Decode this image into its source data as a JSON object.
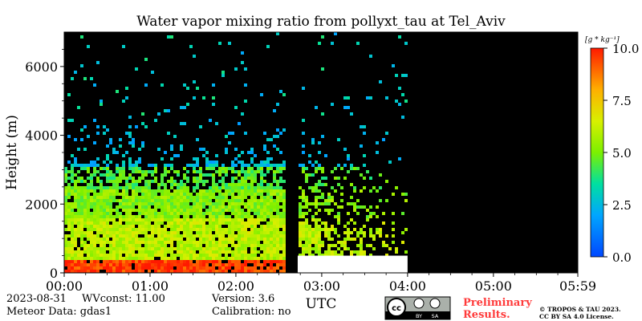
{
  "chart_data": {
    "type": "heatmap",
    "title": "Water vapor mixing ratio from pollyxt_tau at Tel_Aviv",
    "xlabel": "UTC",
    "ylabel": "Height (m)",
    "x_ticks": [
      "00:00",
      "01:00",
      "02:00",
      "03:00",
      "04:00",
      "05:00",
      "05:59"
    ],
    "x_range_hours": [
      0,
      5.983
    ],
    "y_ticks": [
      0,
      2000,
      4000,
      6000
    ],
    "ylim": [
      0,
      7000
    ],
    "colorbar": {
      "label": "[g * kg⁻¹]",
      "range": [
        0.0,
        10.0
      ],
      "ticks": [
        "0.0",
        "2.5",
        "5.0",
        "7.5",
        "10.0"
      ],
      "colormap": "jet"
    },
    "data_gaps_hours": [
      [
        2.55,
        2.72
      ],
      [
        4.0,
        5.983
      ]
    ],
    "profile_layers": [
      {
        "top_m": 450,
        "value_g_kg": 9.5
      },
      {
        "top_m": 1600,
        "value_g_kg": 6.0
      },
      {
        "top_m": 2500,
        "value_g_kg": 5.2
      },
      {
        "top_m": 3100,
        "value_g_kg": 4.5
      },
      {
        "top_m": 4500,
        "value_g_kg": 2.5
      }
    ]
  },
  "footer": {
    "date": "2023-08-31",
    "wvconst": "WVconst:  11.00",
    "meteor": "Meteor Data: gdas1",
    "version": "Version: 3.6",
    "calibration": "Calibration: no",
    "preliminary_line1": "Preliminary",
    "preliminary_line2": "Results.",
    "copyright_line1": "© TROPOS & TAU 2023.",
    "copyright_line2": "CC BY SA 4.0 License.",
    "license_badge": [
      "cc",
      "BY",
      "SA"
    ]
  },
  "colors": {
    "background_no_data": "#000000",
    "ground": "#ffffff",
    "preliminary": "#ff3b3b"
  }
}
